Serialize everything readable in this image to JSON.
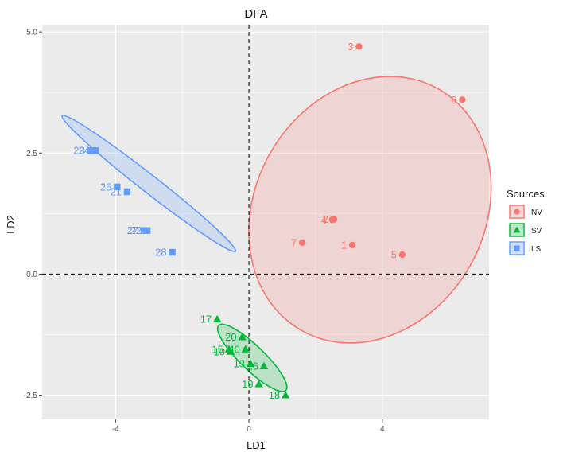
{
  "chart_data": {
    "type": "scatter",
    "title": "DFA",
    "xlabel": "LD1",
    "ylabel": "LD2",
    "xlim": [
      -6.2,
      7.2
    ],
    "ylim": [
      -3.0,
      5.15
    ],
    "x_ticks": [
      -4,
      0,
      4
    ],
    "x_tick_labels": [
      "-4",
      "0",
      "4"
    ],
    "y_ticks": [
      -2.5,
      0.0,
      2.5,
      5.0
    ],
    "y_tick_labels": [
      "-2.5",
      "0.0",
      "2.5",
      "5.0"
    ],
    "grid": true,
    "reference_lines": {
      "x": 0,
      "y": 0,
      "style": "dashed"
    },
    "legend": {
      "title": "Sources",
      "placement": "right",
      "entries": [
        {
          "label": "NV",
          "color": "#F8766D",
          "shape": "circle"
        },
        {
          "label": "SV",
          "color": "#00BA38",
          "shape": "triangle"
        },
        {
          "label": "LS",
          "color": "#619CFF",
          "shape": "square"
        }
      ]
    },
    "series": [
      {
        "name": "NV",
        "color": "#F8766D",
        "shape": "circle",
        "points": [
          {
            "label": "1",
            "x": 3.1,
            "y": 0.6
          },
          {
            "label": "2",
            "x": 2.55,
            "y": 1.13
          },
          {
            "label": "3",
            "x": 3.3,
            "y": 4.7
          },
          {
            "label": "4",
            "x": 2.5,
            "y": 1.12
          },
          {
            "label": "5",
            "x": 4.6,
            "y": 0.4
          },
          {
            "label": "6",
            "x": 6.4,
            "y": 3.6
          },
          {
            "label": "7",
            "x": 1.6,
            "y": 0.65
          }
        ],
        "ellipse": {
          "cx": 3.63,
          "cy": 1.33,
          "rx": 4.16,
          "ry": 2.37,
          "angle_deg": 60
        }
      },
      {
        "name": "SV",
        "color": "#00BA38",
        "shape": "triangle",
        "points": [
          {
            "label": "10",
            "x": -0.55,
            "y": -1.6
          },
          {
            "label": "13",
            "x": 0.05,
            "y": -1.85
          },
          {
            "label": "15",
            "x": -0.6,
            "y": -1.55
          },
          {
            "label": "16",
            "x": 0.45,
            "y": -1.9
          },
          {
            "label": "17",
            "x": -0.95,
            "y": -0.93
          },
          {
            "label": "18",
            "x": 1.1,
            "y": -2.5
          },
          {
            "label": "19",
            "x": 0.3,
            "y": -2.27
          },
          {
            "label": "20",
            "x": -0.2,
            "y": -1.3
          },
          {
            "label": "40",
            "x": -0.1,
            "y": -1.55
          }
        ],
        "ellipse": {
          "cx": 0.1,
          "cy": -1.73,
          "rx": 1.4,
          "ry": 0.25,
          "angle_deg": -44
        }
      },
      {
        "name": "LS",
        "color": "#619CFF",
        "shape": "square",
        "points": [
          {
            "label": "21",
            "x": -3.65,
            "y": 1.7
          },
          {
            "label": "22",
            "x": -3.05,
            "y": 0.9
          },
          {
            "label": "23",
            "x": -4.75,
            "y": 2.55
          },
          {
            "label": "24",
            "x": -4.6,
            "y": 2.55
          },
          {
            "label": "25",
            "x": -3.95,
            "y": 1.8
          },
          {
            "label": "27",
            "x": -3.15,
            "y": 0.9
          },
          {
            "label": "28",
            "x": -2.3,
            "y": 0.45
          }
        ],
        "ellipse": {
          "cx": -3.0,
          "cy": 1.87,
          "rx": 3.3,
          "ry": 0.18,
          "angle_deg": -38
        }
      }
    ]
  }
}
